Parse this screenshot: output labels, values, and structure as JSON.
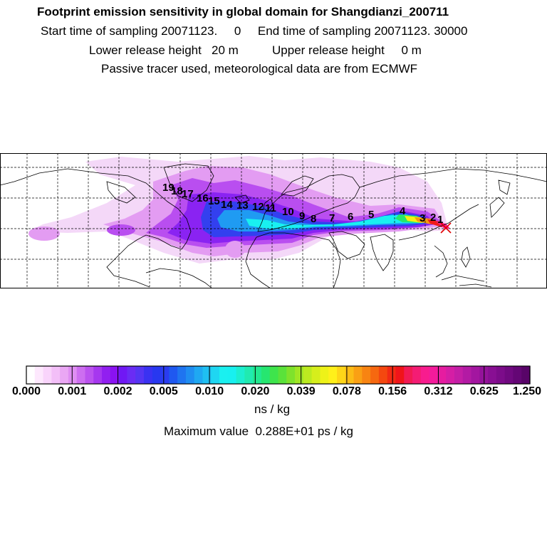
{
  "header": {
    "title": "Footprint emission sensitivity in global domain for Shangdianzi_200711",
    "sampling_line": "Start time of sampling 20071123.     0     End time of sampling 20071123. 30000",
    "release_line": "Lower release height   20 m          Upper release height     0 m",
    "tracer_line": "Passive tracer used, meteorological data are from ECMWF"
  },
  "map": {
    "trajectory_labels": [
      "19",
      "18",
      "17",
      "16",
      "15",
      "14",
      "13",
      "12",
      "11",
      "10",
      "9",
      "8",
      "7",
      "6",
      "5",
      "4",
      "3",
      "2",
      "1"
    ],
    "site_marker": "x",
    "colors": {
      "faint": "#f4d8f8",
      "light": "#e39cf2",
      "violet": "#b94ef0",
      "purple": "#8a23f2",
      "blue": "#3340ef",
      "azure": "#1f9bf2",
      "cyan": "#19f0f0",
      "green": "#25e86a",
      "yellow": "#f5f013",
      "orange": "#f59a10",
      "red": "#f01a1a",
      "pink": "#f81c8e"
    }
  },
  "colorbar": {
    "tick_labels": [
      "0.000",
      "0.001",
      "0.002",
      "0.005",
      "0.010",
      "0.020",
      "0.039",
      "0.078",
      "0.156",
      "0.312",
      "0.625",
      "1.250"
    ],
    "colors": [
      "#ffffff",
      "#fde8fd",
      "#f9d4fb",
      "#f3bff8",
      "#eaa7f4",
      "#df8ef2",
      "#cd6ef0",
      "#bb52ef",
      "#a637ef",
      "#911ff0",
      "#8a12f2",
      "#7018f4",
      "#6a2cf4",
      "#5535f3",
      "#3a32f2",
      "#2838f0",
      "#2a3cf0",
      "#1f58f0",
      "#1f74f0",
      "#1f8df1",
      "#1fa8f2",
      "#1fbff2",
      "#1fd6f2",
      "#1af0f0",
      "#18f0f0",
      "#1ceed0",
      "#20eab0",
      "#22e890",
      "#26e670",
      "#3ee44c",
      "#5ae23a",
      "#7ee22c",
      "#a0e624",
      "#bcea20",
      "#d6ee1c",
      "#eef218",
      "#fff01a",
      "#fed618",
      "#fcbc16",
      "#faa014",
      "#f88412",
      "#f66810",
      "#f4480f",
      "#f22a14",
      "#f0141a",
      "#f21a54",
      "#f41c74",
      "#f81c8e",
      "#f41b9b",
      "#e61ca0",
      "#d51ea5",
      "#c41ea6",
      "#b31aa4",
      "#a316a0",
      "#94129a",
      "#880f93",
      "#7c0c8a",
      "#700980",
      "#640675",
      "#580468"
    ],
    "units_label": "ns / kg",
    "max_value_label": "Maximum value  0.288E+01 ps / kg"
  }
}
